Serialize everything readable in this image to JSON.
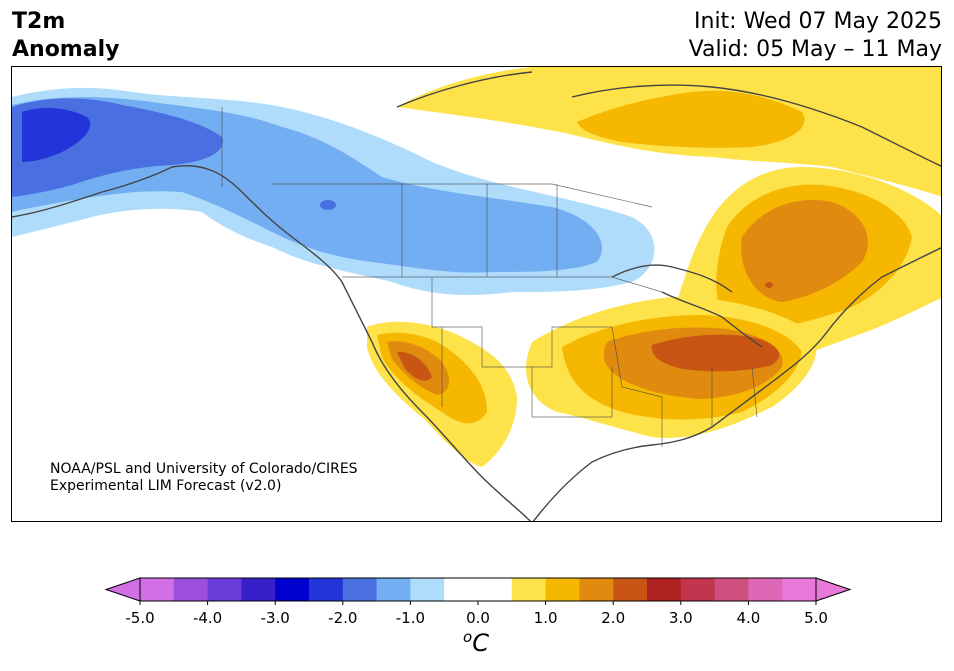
{
  "header": {
    "title_line1": "T2m",
    "title_line2": "Anomaly",
    "init_label": "Init: Wed 07 May 2025",
    "valid_label": "Valid: 05 May – 11 May"
  },
  "credit": {
    "line1": "NOAA/PSL and University of Colorado/CIRES",
    "line2": "Experimental LIM Forecast (v2.0)"
  },
  "colorbar": {
    "unit_main": "C",
    "unit_sup": "o",
    "tick_labels": [
      "-5.0",
      "-4.0",
      "-3.0",
      "-2.0",
      "-1.0",
      "0.0",
      "1.0",
      "2.0",
      "3.0",
      "4.0",
      "5.0"
    ],
    "colors": [
      "#d36fe6",
      "#9b4fdc",
      "#6a3cd9",
      "#3820c8",
      "#0000cc",
      "#2235d8",
      "#4a6fe0",
      "#73aef3",
      "#aedcfa",
      "#ffffff",
      "#ffffff",
      "#fde24a",
      "#f5b700",
      "#e08b10",
      "#c95514",
      "#b02222",
      "#c2354f",
      "#cf507f",
      "#de67b6",
      "#e77ad9"
    ]
  },
  "map": {
    "colors": {
      "land_line": "#444444",
      "cold1": "#aedcfa",
      "cold2": "#73aef3",
      "cold3": "#4a6fe0",
      "cold4": "#2235d8",
      "warm1": "#fde24a",
      "warm2": "#f5b700",
      "warm3": "#e08b10",
      "warm4": "#c95514"
    }
  }
}
